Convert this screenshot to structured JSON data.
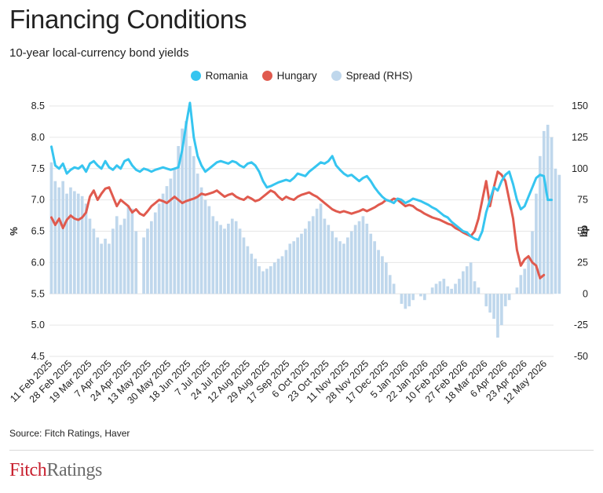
{
  "title": "Financing Conditions",
  "subtitle": "10-year local-currency bond yields",
  "source": "Source: Fitch Ratings, Haver",
  "logo": {
    "part1": "Fitch",
    "part2": "Ratings"
  },
  "colors": {
    "romania": "#36c5f0",
    "hungary": "#e05a4e",
    "spread": "#bfd7ec",
    "grid": "#e6e6e6"
  },
  "chart_data": {
    "type": "line",
    "title": "Financing Conditions",
    "subtitle": "10-year local-currency bond yields",
    "ylabel": "%",
    "y2label": "bp",
    "ylim": [
      4.5,
      8.5
    ],
    "y2lim": [
      -50,
      150
    ],
    "yticks": [
      "8.5",
      "8.0",
      "7.5",
      "7.0",
      "6.5",
      "6.0",
      "5.5",
      "5.0",
      "4.5"
    ],
    "y2ticks": [
      "150",
      "125",
      "100",
      "75",
      "50",
      "25",
      "0",
      "-25",
      "-50"
    ],
    "xticks": [
      "11 Feb 2025",
      "28 Feb 2025",
      "19 Mar 2025",
      "7 Apr 2025",
      "24 Apr 2025",
      "13 May 2025",
      "30 May 2025",
      "18 Jun 2025",
      "7 Jul 2025",
      "24 Jul 2025",
      "12 Aug 2025",
      "29 Aug 2025",
      "17 Sep 2025",
      "6 Oct 2025",
      "23 Oct 2025",
      "11 Nov 2025",
      "28 Nov 2025",
      "17 Dec 2025",
      "5 Jan 2026",
      "22 Jan 2026",
      "10 Feb 2026",
      "27 Feb 2026",
      "18 Mar 2026",
      "6 Apr 2026",
      "23 Apr 2026",
      "12 May 2026"
    ],
    "legend_position": "top-center",
    "grid": true,
    "series": [
      {
        "name": "Romania",
        "axis": "left",
        "type": "line",
        "values": [
          7.85,
          7.55,
          7.5,
          7.58,
          7.42,
          7.48,
          7.52,
          7.5,
          7.55,
          7.45,
          7.58,
          7.62,
          7.55,
          7.5,
          7.62,
          7.52,
          7.48,
          7.55,
          7.5,
          7.62,
          7.65,
          7.55,
          7.48,
          7.45,
          7.5,
          7.48,
          7.45,
          7.48,
          7.5,
          7.52,
          7.5,
          7.48,
          7.5,
          7.52,
          7.8,
          8.2,
          8.55,
          8.0,
          7.7,
          7.55,
          7.45,
          7.5,
          7.55,
          7.6,
          7.62,
          7.6,
          7.58,
          7.62,
          7.6,
          7.55,
          7.52,
          7.58,
          7.6,
          7.55,
          7.45,
          7.3,
          7.2,
          7.22,
          7.25,
          7.28,
          7.3,
          7.32,
          7.3,
          7.35,
          7.42,
          7.4,
          7.38,
          7.45,
          7.5,
          7.55,
          7.6,
          7.58,
          7.62,
          7.7,
          7.55,
          7.48,
          7.42,
          7.38,
          7.4,
          7.35,
          7.3,
          7.35,
          7.38,
          7.3,
          7.2,
          7.12,
          7.05,
          7.0,
          6.98,
          6.95,
          7.02,
          7.0,
          6.95,
          6.98,
          7.02,
          7.0,
          6.98,
          6.95,
          6.92,
          6.88,
          6.85,
          6.8,
          6.75,
          6.72,
          6.65,
          6.6,
          6.55,
          6.5,
          6.48,
          6.42,
          6.38,
          6.36,
          6.5,
          6.8,
          7.0,
          7.2,
          7.15,
          7.3,
          7.4,
          7.45,
          7.25,
          7.0,
          6.85,
          6.9,
          7.05,
          7.2,
          7.35,
          7.4,
          7.38,
          7.0,
          7.0
        ]
      },
      {
        "name": "Hungary",
        "axis": "left",
        "type": "line",
        "values": [
          6.72,
          6.6,
          6.7,
          6.55,
          6.68,
          6.75,
          6.7,
          6.68,
          6.72,
          6.8,
          7.05,
          7.15,
          7.0,
          7.1,
          7.18,
          7.2,
          7.05,
          6.9,
          7.0,
          6.95,
          6.9,
          6.8,
          6.85,
          6.78,
          6.75,
          6.82,
          6.9,
          6.95,
          7.0,
          6.98,
          6.95,
          7.0,
          7.05,
          7.0,
          6.95,
          6.98,
          7.0,
          7.02,
          7.05,
          7.1,
          7.08,
          7.1,
          7.12,
          7.15,
          7.1,
          7.05,
          7.08,
          7.1,
          7.05,
          7.02,
          7.0,
          7.05,
          7.02,
          6.98,
          7.0,
          7.05,
          7.1,
          7.15,
          7.12,
          7.05,
          7.0,
          7.05,
          7.02,
          7.0,
          7.05,
          7.08,
          7.1,
          7.12,
          7.08,
          7.05,
          7.0,
          6.95,
          6.9,
          6.85,
          6.82,
          6.8,
          6.82,
          6.8,
          6.78,
          6.8,
          6.82,
          6.85,
          6.82,
          6.85,
          6.88,
          6.92,
          6.95,
          7.0,
          6.98,
          7.02,
          7.0,
          6.95,
          6.9,
          6.92,
          6.9,
          6.85,
          6.82,
          6.78,
          6.75,
          6.72,
          6.7,
          6.68,
          6.65,
          6.62,
          6.6,
          6.55,
          6.52,
          6.48,
          6.45,
          6.42,
          6.5,
          6.7,
          7.0,
          7.3,
          6.9,
          7.2,
          7.45,
          7.4,
          7.3,
          7.0,
          6.7,
          6.2,
          5.95,
          6.05,
          6.1,
          6.0,
          5.95,
          5.75,
          5.8
        ]
      },
      {
        "name": "Spread (RHS)",
        "axis": "right",
        "type": "bar",
        "values": [
          105,
          90,
          85,
          90,
          80,
          85,
          82,
          80,
          78,
          72,
          60,
          52,
          45,
          40,
          44,
          40,
          52,
          62,
          55,
          60,
          70,
          68,
          50,
          0,
          45,
          52,
          58,
          65,
          72,
          80,
          86,
          92,
          100,
          118,
          132,
          138,
          118,
          110,
          96,
          85,
          75,
          70,
          62,
          58,
          55,
          52,
          56,
          60,
          58,
          52,
          45,
          38,
          32,
          28,
          22,
          18,
          20,
          22,
          25,
          28,
          30,
          35,
          40,
          42,
          45,
          48,
          52,
          58,
          62,
          68,
          72,
          60,
          55,
          50,
          45,
          42,
          40,
          45,
          50,
          55,
          58,
          62,
          56,
          48,
          42,
          35,
          30,
          25,
          15,
          8,
          0,
          -8,
          -12,
          -10,
          -5,
          0,
          -2,
          -5,
          0,
          5,
          8,
          10,
          12,
          6,
          4,
          8,
          12,
          18,
          22,
          25,
          10,
          5,
          0,
          -10,
          -15,
          -20,
          -35,
          -25,
          -10,
          -5,
          0,
          5,
          15,
          20,
          30,
          50,
          80,
          110,
          130,
          135,
          125,
          100,
          95
        ]
      }
    ]
  }
}
